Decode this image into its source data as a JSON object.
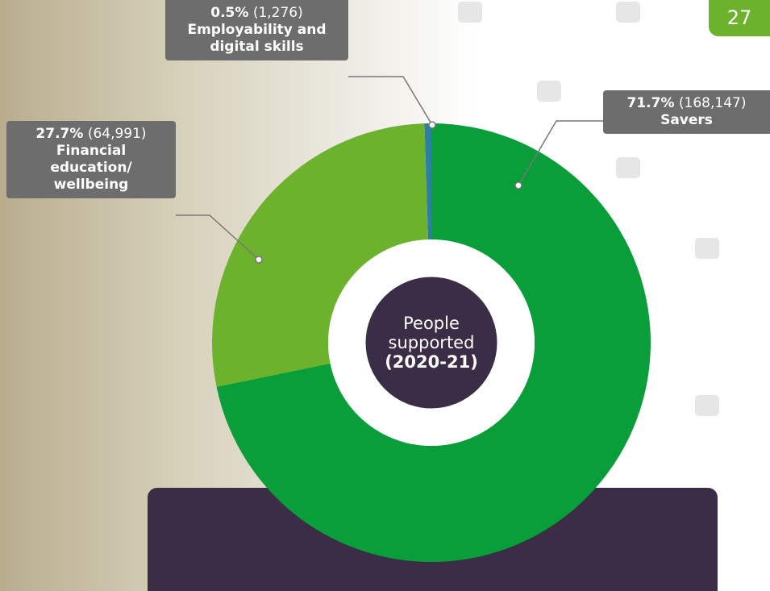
{
  "page_number": "27",
  "chart_data": {
    "type": "pie",
    "center_label": "People supported",
    "center_sublabel": "(2020-21)",
    "categories": [
      "Savers",
      "Financial education/ wellbeing",
      "Employability and digital skills"
    ],
    "values": [
      71.7,
      27.7,
      0.5
    ],
    "value_labels": [
      "71.7%",
      "27.7%",
      "0.5%"
    ],
    "count_labels": [
      "(168,147)",
      "(64,991)",
      "(1,276)"
    ],
    "colors": [
      "#0a9e3a",
      "#6cb22c",
      "#2b7fa0"
    ]
  }
}
